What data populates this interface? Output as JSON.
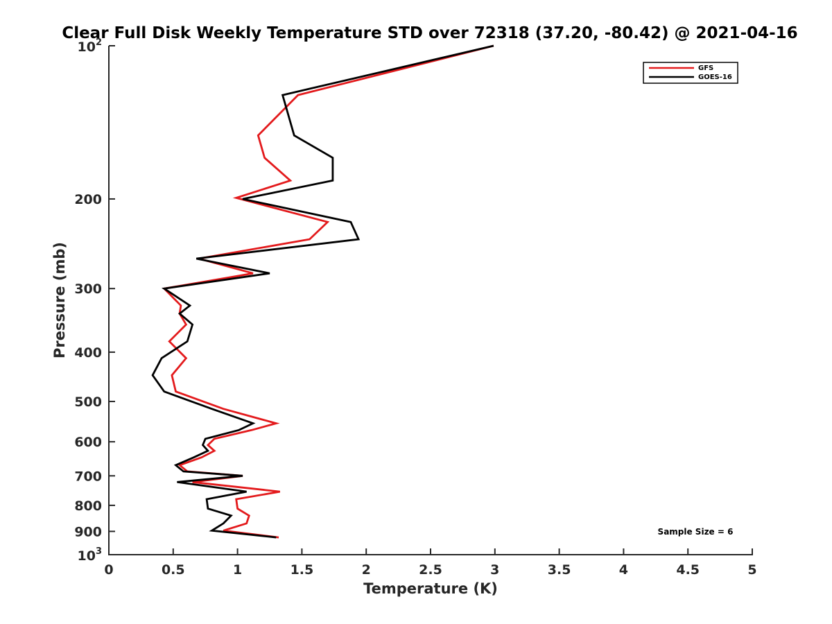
{
  "chart_data": {
    "type": "line",
    "title": "Clear Full Disk Weekly Temperature STD over 72318 (37.20, -80.42) @ 2021-04-16",
    "xlabel": "Temperature (K)",
    "ylabel": "Pressure (mb)",
    "xlim": [
      0,
      5
    ],
    "ylim": [
      100,
      1000
    ],
    "y_scale": "log",
    "y_reversed": true,
    "grid": false,
    "legend_position": "top-right",
    "x_ticks": [
      "0",
      "0.5",
      "1",
      "1.5",
      "2",
      "2.5",
      "3",
      "3.5",
      "4",
      "4.5",
      "5"
    ],
    "y_ticks": [
      {
        "value": 100,
        "label": "10",
        "sup": "2"
      },
      {
        "value": 200,
        "label": "200",
        "sup": ""
      },
      {
        "value": 300,
        "label": "300",
        "sup": ""
      },
      {
        "value": 400,
        "label": "400",
        "sup": ""
      },
      {
        "value": 500,
        "label": "500",
        "sup": ""
      },
      {
        "value": 600,
        "label": "600",
        "sup": ""
      },
      {
        "value": 700,
        "label": "700",
        "sup": ""
      },
      {
        "value": 800,
        "label": "800",
        "sup": ""
      },
      {
        "value": 900,
        "label": "900",
        "sup": ""
      },
      {
        "value": 1000,
        "label": "10",
        "sup": "3"
      }
    ],
    "series": [
      {
        "name": "GFS",
        "color": "#e31a1c",
        "points": [
          [
            2.99,
            100
          ],
          [
            1.47,
            125
          ],
          [
            1.16,
            150
          ],
          [
            1.21,
            166
          ],
          [
            1.41,
            184
          ],
          [
            0.99,
            199
          ],
          [
            1.7,
            222
          ],
          [
            1.56,
            240
          ],
          [
            0.7,
            262
          ],
          [
            1.12,
            280
          ],
          [
            0.43,
            300
          ],
          [
            0.56,
            324
          ],
          [
            0.55,
            336
          ],
          [
            0.6,
            353
          ],
          [
            0.47,
            381
          ],
          [
            0.6,
            411
          ],
          [
            0.49,
            444
          ],
          [
            0.52,
            478
          ],
          [
            0.89,
            517
          ],
          [
            1.3,
            552
          ],
          [
            1.11,
            569
          ],
          [
            0.82,
            592
          ],
          [
            0.77,
            609
          ],
          [
            0.82,
            625
          ],
          [
            0.72,
            644
          ],
          [
            0.55,
            667
          ],
          [
            0.61,
            686
          ],
          [
            1.04,
            700
          ],
          [
            0.65,
            720
          ],
          [
            1.33,
            752
          ],
          [
            0.99,
            778
          ],
          [
            1.0,
            812
          ],
          [
            1.09,
            838
          ],
          [
            1.07,
            868
          ],
          [
            0.89,
            897
          ],
          [
            1.32,
            925
          ]
        ]
      },
      {
        "name": "GOES-16",
        "color": "#000000",
        "points": [
          [
            2.99,
            100
          ],
          [
            1.35,
            125
          ],
          [
            1.44,
            150
          ],
          [
            1.74,
            166
          ],
          [
            1.74,
            184
          ],
          [
            1.04,
            200
          ],
          [
            1.88,
            222
          ],
          [
            1.94,
            240
          ],
          [
            0.68,
            262
          ],
          [
            1.25,
            280
          ],
          [
            0.43,
            300
          ],
          [
            0.63,
            324
          ],
          [
            0.55,
            336
          ],
          [
            0.65,
            353
          ],
          [
            0.61,
            381
          ],
          [
            0.41,
            411
          ],
          [
            0.34,
            444
          ],
          [
            0.43,
            478
          ],
          [
            0.8,
            517
          ],
          [
            1.12,
            552
          ],
          [
            1.01,
            569
          ],
          [
            0.75,
            592
          ],
          [
            0.73,
            609
          ],
          [
            0.77,
            625
          ],
          [
            0.66,
            644
          ],
          [
            0.52,
            667
          ],
          [
            0.58,
            686
          ],
          [
            1.04,
            700
          ],
          [
            0.53,
            720
          ],
          [
            1.07,
            752
          ],
          [
            0.76,
            778
          ],
          [
            0.77,
            812
          ],
          [
            0.95,
            838
          ],
          [
            0.89,
            868
          ],
          [
            0.8,
            897
          ],
          [
            1.3,
            925
          ]
        ]
      }
    ],
    "annotation": "Sample Size = 6"
  }
}
